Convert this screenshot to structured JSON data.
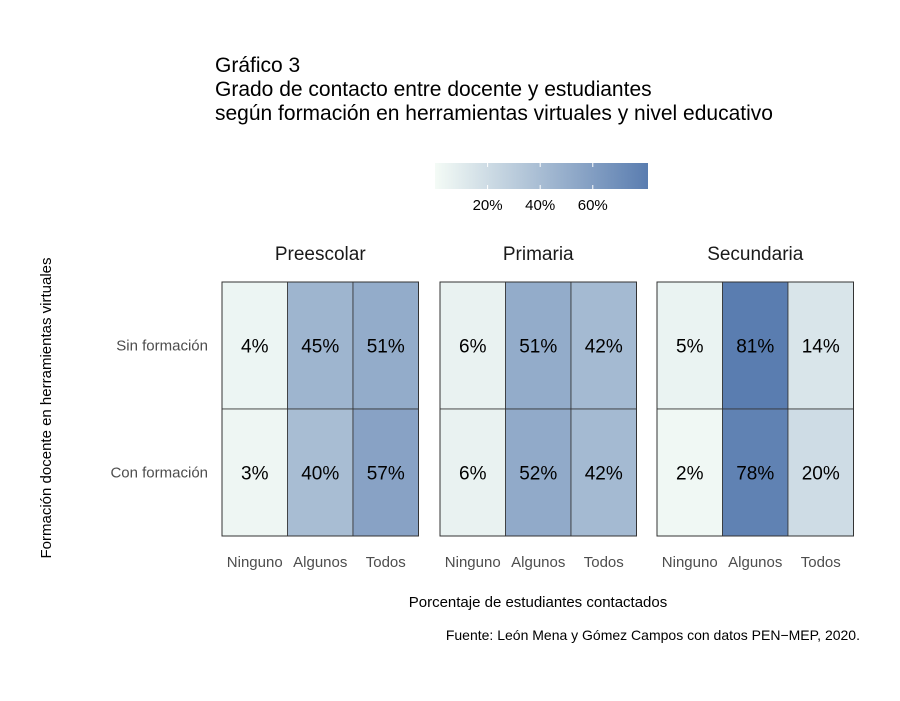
{
  "title_lines": [
    "Gráfico 3",
    "Grado de contacto entre docente y estudiantes",
    "según formación en herramientas virtuales y nivel educativo"
  ],
  "caption": "Fuente: León Mena y Gómez Campos con datos PEN−MEP, 2020.",
  "colors": {
    "low": "#f4fbf6",
    "high": "#5a7db0",
    "border": "#333333"
  },
  "chart_data": {
    "type": "heatmap",
    "xlabel": "Porcentaje de estudiantes contactados",
    "ylabel": "Formación docente en herramientas virtuales",
    "x_categories": [
      "Ninguno",
      "Algunos",
      "Todos"
    ],
    "y_categories": [
      "Sin formación",
      "Con formación"
    ],
    "legend": {
      "ticks": [
        20,
        40,
        60
      ],
      "tick_labels": [
        "20%",
        "40%",
        "60%"
      ],
      "range": [
        0,
        81
      ],
      "position": "top"
    },
    "panels": [
      {
        "name": "Preescolar",
        "values": [
          [
            4,
            45,
            51
          ],
          [
            3,
            40,
            57
          ]
        ],
        "labels": [
          [
            "4%",
            "45%",
            "51%"
          ],
          [
            "3%",
            "40%",
            "57%"
          ]
        ]
      },
      {
        "name": "Primaria",
        "values": [
          [
            6,
            51,
            42
          ],
          [
            6,
            52,
            42
          ]
        ],
        "labels": [
          [
            "6%",
            "51%",
            "42%"
          ],
          [
            "6%",
            "52%",
            "42%"
          ]
        ]
      },
      {
        "name": "Secundaria",
        "values": [
          [
            5,
            81,
            14
          ],
          [
            2,
            78,
            20
          ]
        ],
        "labels": [
          [
            "5%",
            "81%",
            "14%"
          ],
          [
            "2%",
            "78%",
            "20%"
          ]
        ]
      }
    ]
  }
}
